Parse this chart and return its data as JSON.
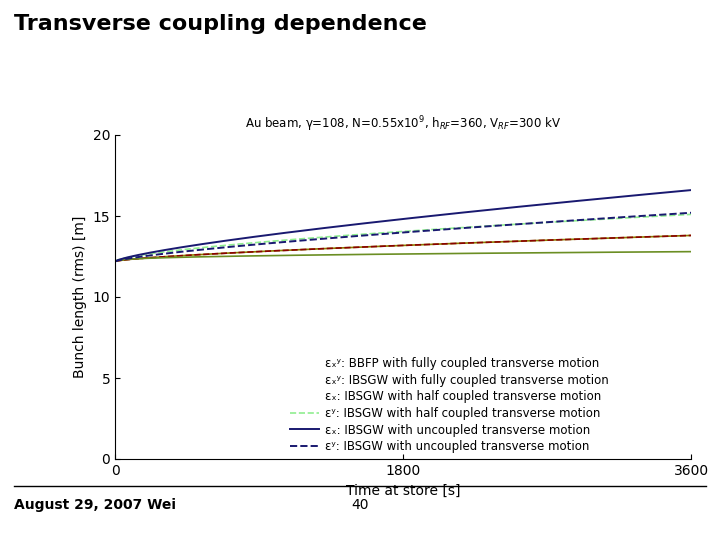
{
  "title": "Transverse coupling dependence",
  "subtitle": "Au beam, γ=108, N=0.55x10⁹, hᴯᶠ=360, Vᴯᶠ=300 kV",
  "subtitle_plain": "Au beam, γ=108, N=0.55x10⁹, h_RF=360, V_RF=300 kV",
  "xlabel": "Time at store [s]",
  "ylabel": "Bunch length (rms) [m]",
  "xlim": [
    0,
    3600
  ],
  "ylim": [
    0,
    20
  ],
  "yticks": [
    0,
    5,
    10,
    15,
    20
  ],
  "xticks": [
    0,
    1800,
    3600
  ],
  "x_start": 0,
  "x_end": 3600,
  "lines": [
    {
      "label": "εₓʸ: BBFP with fully coupled transverse motion",
      "y_start": 12.2,
      "y_end": 13.8,
      "color": "#8B8000",
      "linestyle": "-",
      "linewidth": 1.2,
      "show_legend_line": false,
      "curve_power": 0.7
    },
    {
      "label": "εₓʸ: IBSGW with fully coupled transverse motion",
      "y_start": 12.2,
      "y_end": 13.8,
      "color": "#8B0000",
      "linestyle": "--",
      "linewidth": 1.2,
      "show_legend_line": false,
      "curve_power": 0.7
    },
    {
      "label": "εₓ: IBSGW with half coupled transverse motion",
      "y_start": 12.2,
      "y_end": 12.8,
      "color": "#6B8E23",
      "linestyle": "-",
      "linewidth": 1.2,
      "show_legend_line": false,
      "curve_power": 0.4
    },
    {
      "label": "εʸ: IBSGW with half coupled transverse motion",
      "y_start": 12.2,
      "y_end": 15.1,
      "color": "#90EE90",
      "linestyle": "--",
      "linewidth": 1.2,
      "show_legend_line": true,
      "curve_power": 0.65
    },
    {
      "label": "εₓ: IBSGW with uncoupled transverse motion",
      "y_start": 12.2,
      "y_end": 16.6,
      "color": "#191970",
      "linestyle": "-",
      "linewidth": 1.4,
      "show_legend_line": true,
      "curve_power": 0.75
    },
    {
      "label": "εʸ: IBSGW with uncoupled transverse motion",
      "y_start": 12.2,
      "y_end": 15.2,
      "color": "#191970",
      "linestyle": "--",
      "linewidth": 1.4,
      "show_legend_line": true,
      "curve_power": 0.75
    }
  ],
  "footer_left": "August 29, 2007 Wei",
  "footer_center": "40",
  "bg_color": "#ffffff",
  "plot_bg": "#ffffff",
  "title_fontsize": 16,
  "axis_fontsize": 10,
  "legend_fontsize": 8.5,
  "footer_fontsize": 10
}
